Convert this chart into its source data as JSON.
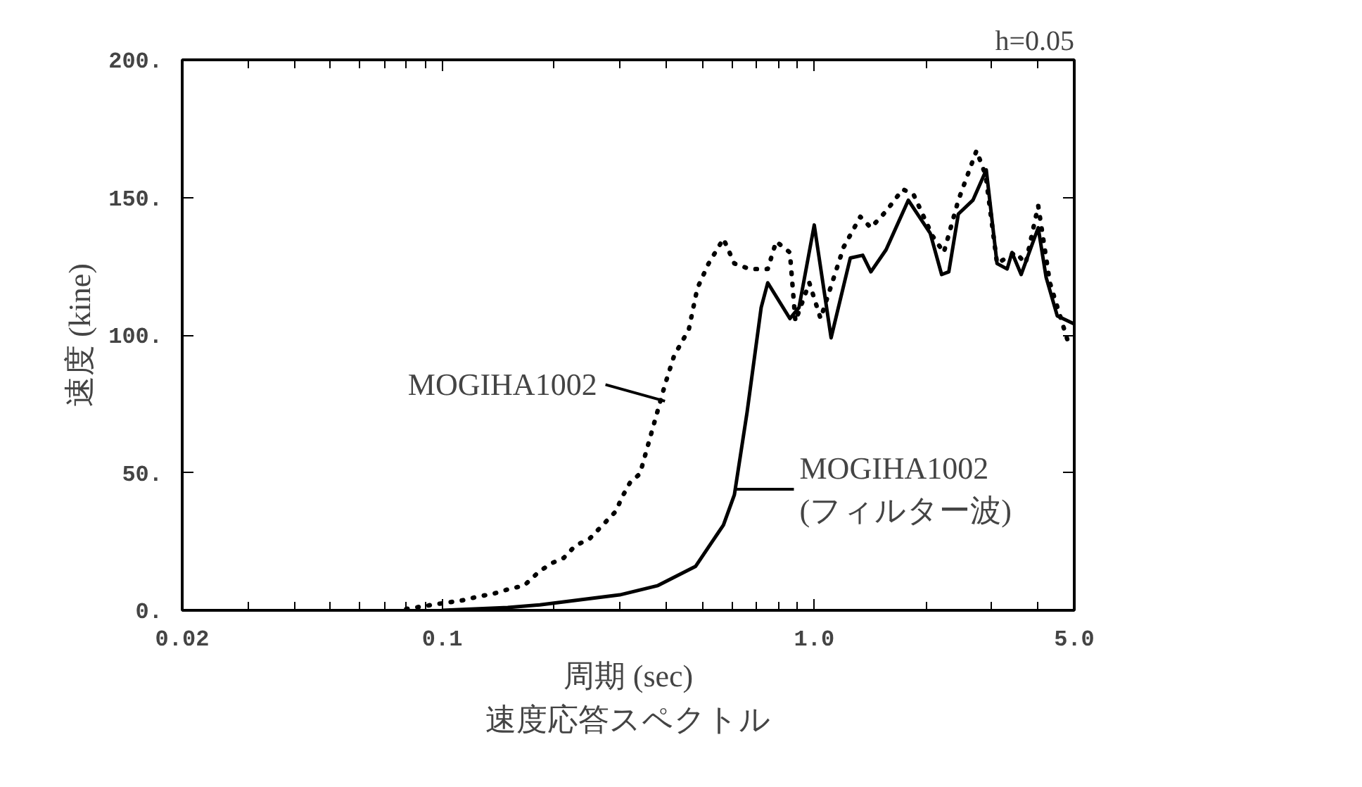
{
  "chart_data": {
    "type": "line",
    "title": "h=0.05",
    "xlabel": "周期 (sec)",
    "ylabel": "速度 (kine)",
    "log": "x",
    "grid": false,
    "marker": "none",
    "xlim": [
      0.02,
      5.0
    ],
    "ylim": [
      0,
      200
    ],
    "xticks": [
      0.02,
      0.1,
      {
        "value": 1.0,
        "label": "1.0"
      },
      {
        "value": 5.0,
        "label": "5.0"
      }
    ],
    "yticks": [
      {
        "value": 0,
        "label": "0."
      },
      {
        "value": 50,
        "label": "50."
      },
      {
        "value": 100,
        "label": "100."
      },
      {
        "value": 150,
        "label": "150."
      },
      {
        "value": 200,
        "label": "200."
      }
    ],
    "series": [
      {
        "color": "#000000",
        "line_style": "dotted",
        "x": [
          0.08,
          0.094,
          0.113,
          0.125,
          0.137,
          0.151,
          0.166,
          0.182,
          0.196,
          0.212,
          0.228,
          0.249,
          0.27,
          0.293,
          0.304,
          0.32,
          0.34,
          0.397,
          0.42,
          0.46,
          0.485,
          0.52,
          0.57,
          0.61,
          0.67,
          0.75,
          0.79,
          0.86,
          0.89,
          0.97,
          1.04,
          1.2,
          1.33,
          1.42,
          1.56,
          1.73,
          1.85,
          2.08,
          2.23,
          2.44,
          2.73,
          2.89,
          3.1,
          3.48,
          3.7,
          4.0,
          4.3,
          4.8
        ],
        "values": [
          0.5,
          2,
          3.6,
          5,
          6,
          7.7,
          9,
          14,
          17,
          19,
          23.5,
          26,
          31,
          36,
          41,
          46.5,
          49.6,
          82,
          92.5,
          102,
          117,
          126,
          135,
          126,
          124,
          124,
          134,
          130,
          105,
          119,
          106,
          132,
          143,
          139,
          145,
          153,
          151,
          136,
          130,
          149,
          167,
          158,
          126,
          130,
          126,
          147,
          119,
          98
        ]
      },
      {
        "color": "#000000",
        "line_style": "solid",
        "x": [
          0.1,
          0.15,
          0.183,
          0.3,
          0.38,
          0.48,
          0.57,
          0.61,
          0.66,
          0.72,
          0.75,
          0.86,
          0.91,
          1.0,
          1.11,
          1.25,
          1.35,
          1.42,
          1.56,
          1.79,
          2.05,
          2.2,
          2.3,
          2.44,
          2.67,
          2.9,
          3.1,
          3.3,
          3.4,
          3.6,
          4.0,
          4.2,
          4.5,
          5.0
        ],
        "values": [
          0,
          1,
          2,
          5.6,
          9,
          16,
          31,
          42,
          72,
          110,
          119,
          106,
          110,
          140,
          99,
          128,
          129,
          123,
          131,
          149,
          137,
          122,
          123,
          144,
          149,
          160,
          126,
          124,
          130,
          122,
          139,
          121,
          107,
          104
        ]
      }
    ],
    "annotations": [
      {
        "text": "MOGIHA1002",
        "x": 0.397,
        "y": 76
      },
      {
        "text": "MOGIHA1002 (フィルター波)",
        "x": 0.61,
        "y": 44
      },
      "速度応答スペクトル"
    ]
  }
}
